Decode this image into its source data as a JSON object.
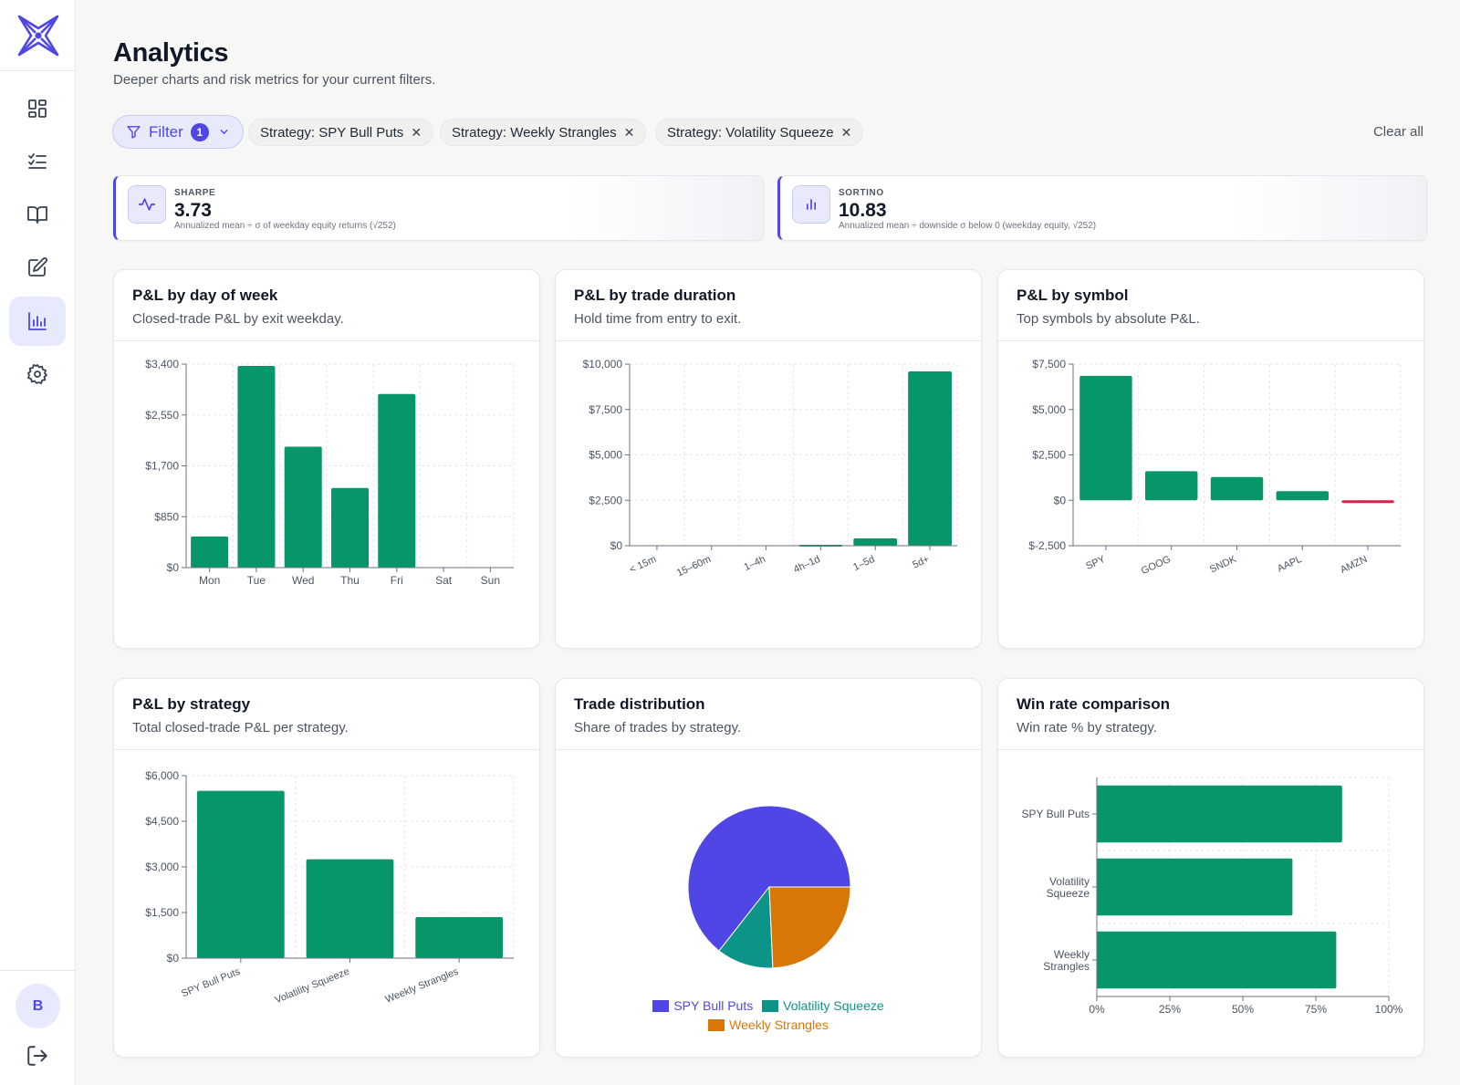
{
  "app": {
    "name": "Analytics"
  },
  "sidebar": {
    "items": [
      {
        "name": "dashboard",
        "icon": "grid-icon"
      },
      {
        "name": "trades",
        "icon": "checklist-icon"
      },
      {
        "name": "playbook",
        "icon": "book-icon"
      },
      {
        "name": "journal",
        "icon": "edit-icon"
      },
      {
        "name": "analytics",
        "icon": "bar-chart-icon",
        "active": true
      },
      {
        "name": "settings",
        "icon": "gear-icon"
      }
    ],
    "avatar_initial": "B"
  },
  "header": {
    "title": "Analytics",
    "subtitle": "Deeper charts and risk metrics for your current filters."
  },
  "filters": {
    "button_label": "Filter",
    "count": "1",
    "chips": [
      "Strategy: SPY Bull Puts",
      "Strategy: Weekly Strangles",
      "Strategy: Volatility Squeeze"
    ],
    "remove_glyph": "✕",
    "clear_all": "Clear all"
  },
  "metrics": [
    {
      "label": "SHARPE",
      "value": "3.73",
      "description": "Annualized mean ÷ σ of weekday equity returns (√252)"
    },
    {
      "label": "SORTINO",
      "value": "10.83",
      "description": "Annualized mean ÷ downside σ below 0 (weekday equity, √252)"
    }
  ],
  "colors": {
    "accent": "#4f46e5",
    "positive": "#079669",
    "negative": "#e11d48",
    "orange": "#d97706",
    "teal": "#0d9488"
  },
  "cards": [
    {
      "title": "P&L by day of week",
      "subtitle": "Closed-trade P&L by exit weekday."
    },
    {
      "title": "P&L by trade duration",
      "subtitle": "Hold time from entry to exit."
    },
    {
      "title": "P&L by symbol",
      "subtitle": "Top symbols by absolute P&L."
    },
    {
      "title": "P&L by strategy",
      "subtitle": "Total closed-trade P&L per strategy."
    },
    {
      "title": "Trade distribution",
      "subtitle": "Share of trades by strategy."
    },
    {
      "title": "Win rate comparison",
      "subtitle": "Win rate % by strategy."
    }
  ],
  "chart_data": [
    {
      "type": "bar",
      "title": "P&L by day of week",
      "categories": [
        "Mon",
        "Tue",
        "Wed",
        "Thu",
        "Fri",
        "Sat",
        "Sun"
      ],
      "values": [
        520,
        3370,
        2020,
        1330,
        2900,
        0,
        0
      ],
      "ylim": [
        0,
        3400
      ],
      "yticks": [
        0,
        850,
        1700,
        2550,
        3400
      ],
      "ytick_labels": [
        "$0",
        "$850",
        "$1,700",
        "$2,550",
        "$3,400"
      ],
      "grid": true
    },
    {
      "type": "bar",
      "title": "P&L by trade duration",
      "categories": [
        "< 15m",
        "15–60m",
        "1–4h",
        "4h–1d",
        "1–5d",
        "5d+"
      ],
      "values": [
        0,
        0,
        0,
        50,
        400,
        9600
      ],
      "ylim": [
        0,
        10000
      ],
      "yticks": [
        0,
        2500,
        5000,
        7500,
        10000
      ],
      "ytick_labels": [
        "$0",
        "$2,500",
        "$5,000",
        "$7,500",
        "$10,000"
      ],
      "grid": true
    },
    {
      "type": "bar",
      "title": "P&L by symbol",
      "categories": [
        "SPY",
        "GOOG",
        "SNDK",
        "AAPL",
        "AMZN"
      ],
      "values": [
        6850,
        1600,
        1280,
        500,
        -150
      ],
      "ylim": [
        -2500,
        7500
      ],
      "yticks": [
        -2500,
        0,
        2500,
        5000,
        7500
      ],
      "ytick_labels": [
        "$-2,500",
        "$0",
        "$2,500",
        "$5,000",
        "$7,500"
      ],
      "grid": true
    },
    {
      "type": "bar",
      "title": "P&L by strategy",
      "categories": [
        "SPY Bull Puts",
        "Volatility Squeeze",
        "Weekly Strangles"
      ],
      "values": [
        5500,
        3250,
        1350
      ],
      "ylim": [
        0,
        6000
      ],
      "yticks": [
        0,
        1500,
        3000,
        4500,
        6000
      ],
      "ytick_labels": [
        "$0",
        "$1,500",
        "$3,000",
        "$4,500",
        "$6,000"
      ],
      "grid": true
    },
    {
      "type": "pie",
      "title": "Trade distribution",
      "categories": [
        "SPY Bull Puts",
        "Volatility Squeeze",
        "Weekly Strangles"
      ],
      "values": [
        64.4,
        11.3,
        24.3
      ],
      "legend": "bottom"
    },
    {
      "type": "bar",
      "orientation": "horizontal",
      "title": "Win rate comparison",
      "categories": [
        "SPY Bull Puts",
        "Volatility Squeeze",
        "Weekly Strangles"
      ],
      "values": [
        84,
        67,
        82
      ],
      "xlim": [
        0,
        100
      ],
      "xticks": [
        0,
        25,
        50,
        75,
        100
      ],
      "xtick_labels": [
        "0%",
        "25%",
        "50%",
        "75%",
        "100%"
      ],
      "grid": true
    }
  ]
}
